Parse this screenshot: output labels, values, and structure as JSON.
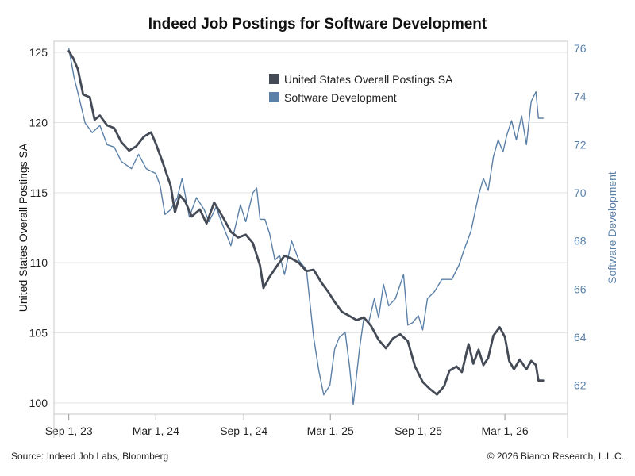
{
  "chart_data": {
    "type": "line",
    "title": "Indeed Job Postings for Software Development",
    "ylabel_left": "United States Overall Postings SA",
    "ylabel_right": "Software Development",
    "xlabel": "",
    "x_tick_labels": [
      "Sep 1, 23",
      "Mar 1, 24",
      "Sep 1, 24",
      "Mar 1, 25",
      "Sep 1, 25",
      "Mar 1, 26"
    ],
    "x_tick_dates": [
      "2023-09-01",
      "2024-03-01",
      "2024-09-01",
      "2025-03-01",
      "2025-09-01",
      "2026-03-01"
    ],
    "xlim": [
      "2023-08-01",
      "2026-07-10"
    ],
    "ylim_left": [
      99.2,
      125.8
    ],
    "ylim_right": [
      60.8,
      76.3
    ],
    "y_ticks_left": [
      100,
      105,
      110,
      115,
      120,
      125
    ],
    "y_ticks_right": [
      62,
      64,
      66,
      68,
      70,
      72,
      74,
      76
    ],
    "grid": true,
    "legend_position": "top-center",
    "series": [
      {
        "name": "United States Overall Postings SA",
        "axis": "left",
        "color": "#444a56",
        "points": [
          [
            "2023-09-01",
            125.1
          ],
          [
            "2023-09-10",
            124.6
          ],
          [
            "2023-09-20",
            123.8
          ],
          [
            "2023-10-01",
            122.0
          ],
          [
            "2023-10-15",
            121.8
          ],
          [
            "2023-10-25",
            120.2
          ],
          [
            "2023-11-05",
            120.5
          ],
          [
            "2023-11-20",
            119.8
          ],
          [
            "2023-12-05",
            119.6
          ],
          [
            "2023-12-20",
            118.6
          ],
          [
            "2024-01-05",
            118.0
          ],
          [
            "2024-01-20",
            118.3
          ],
          [
            "2024-02-05",
            119.0
          ],
          [
            "2024-02-20",
            119.3
          ],
          [
            "2024-03-01",
            118.5
          ],
          [
            "2024-03-15",
            117.2
          ],
          [
            "2024-04-01",
            115.5
          ],
          [
            "2024-04-10",
            113.6
          ],
          [
            "2024-04-20",
            114.8
          ],
          [
            "2024-05-01",
            114.4
          ],
          [
            "2024-05-15",
            113.3
          ],
          [
            "2024-06-01",
            113.8
          ],
          [
            "2024-06-15",
            112.8
          ],
          [
            "2024-07-01",
            114.3
          ],
          [
            "2024-07-20",
            113.2
          ],
          [
            "2024-08-05",
            112.2
          ],
          [
            "2024-08-20",
            111.8
          ],
          [
            "2024-09-05",
            112.0
          ],
          [
            "2024-09-20",
            111.4
          ],
          [
            "2024-10-05",
            109.8
          ],
          [
            "2024-10-12",
            108.2
          ],
          [
            "2024-10-25",
            109.0
          ],
          [
            "2024-11-10",
            109.8
          ],
          [
            "2024-11-25",
            110.5
          ],
          [
            "2024-12-10",
            110.3
          ],
          [
            "2024-12-25",
            110.0
          ],
          [
            "2025-01-10",
            109.4
          ],
          [
            "2025-01-25",
            109.5
          ],
          [
            "2025-02-10",
            108.6
          ],
          [
            "2025-02-25",
            107.9
          ],
          [
            "2025-03-10",
            107.2
          ],
          [
            "2025-03-25",
            106.5
          ],
          [
            "2025-04-10",
            106.2
          ],
          [
            "2025-04-25",
            105.9
          ],
          [
            "2025-05-10",
            106.1
          ],
          [
            "2025-05-25",
            105.5
          ],
          [
            "2025-06-10",
            104.5
          ],
          [
            "2025-06-25",
            103.9
          ],
          [
            "2025-07-10",
            104.6
          ],
          [
            "2025-07-25",
            104.9
          ],
          [
            "2025-08-10",
            104.4
          ],
          [
            "2025-08-25",
            102.6
          ],
          [
            "2025-09-10",
            101.5
          ],
          [
            "2025-09-25",
            101.0
          ],
          [
            "2025-10-10",
            100.6
          ],
          [
            "2025-10-25",
            101.2
          ],
          [
            "2025-11-05",
            102.3
          ],
          [
            "2025-11-20",
            102.6
          ],
          [
            "2025-12-01",
            102.2
          ],
          [
            "2025-12-15",
            104.2
          ],
          [
            "2025-12-25",
            102.8
          ],
          [
            "2026-01-05",
            103.8
          ],
          [
            "2026-01-15",
            102.7
          ],
          [
            "2026-01-25",
            103.2
          ],
          [
            "2026-02-05",
            104.8
          ],
          [
            "2026-02-18",
            105.4
          ],
          [
            "2026-03-01",
            104.7
          ],
          [
            "2026-03-10",
            103.0
          ],
          [
            "2026-03-20",
            102.4
          ],
          [
            "2026-04-01",
            103.1
          ],
          [
            "2026-04-15",
            102.4
          ],
          [
            "2026-04-25",
            103.0
          ],
          [
            "2026-05-05",
            102.7
          ],
          [
            "2026-05-10",
            101.6
          ],
          [
            "2026-05-20",
            101.6
          ]
        ]
      },
      {
        "name": "Software Development",
        "axis": "right",
        "color": "#5b80a8",
        "points": [
          [
            "2023-09-01",
            76.0
          ],
          [
            "2023-09-12",
            74.8
          ],
          [
            "2023-09-22",
            74.0
          ],
          [
            "2023-10-05",
            72.9
          ],
          [
            "2023-10-20",
            72.5
          ],
          [
            "2023-11-05",
            72.8
          ],
          [
            "2023-11-20",
            72.0
          ],
          [
            "2023-12-05",
            71.9
          ],
          [
            "2023-12-20",
            71.3
          ],
          [
            "2024-01-10",
            71.0
          ],
          [
            "2024-01-25",
            71.6
          ],
          [
            "2024-02-10",
            71.0
          ],
          [
            "2024-03-01",
            70.8
          ],
          [
            "2024-03-10",
            70.3
          ],
          [
            "2024-03-20",
            69.1
          ],
          [
            "2024-04-01",
            69.3
          ],
          [
            "2024-04-15",
            69.8
          ],
          [
            "2024-04-25",
            70.6
          ],
          [
            "2024-05-10",
            69.0
          ],
          [
            "2024-05-25",
            69.8
          ],
          [
            "2024-06-10",
            69.3
          ],
          [
            "2024-06-20",
            68.8
          ],
          [
            "2024-07-05",
            69.4
          ],
          [
            "2024-07-20",
            68.6
          ],
          [
            "2024-08-05",
            67.8
          ],
          [
            "2024-08-25",
            69.5
          ],
          [
            "2024-09-05",
            68.8
          ],
          [
            "2024-09-20",
            70.0
          ],
          [
            "2024-09-28",
            70.2
          ],
          [
            "2024-10-05",
            68.9
          ],
          [
            "2024-10-15",
            68.9
          ],
          [
            "2024-10-25",
            68.3
          ],
          [
            "2024-11-05",
            67.2
          ],
          [
            "2024-11-15",
            67.4
          ],
          [
            "2024-11-25",
            66.6
          ],
          [
            "2024-12-10",
            68.0
          ],
          [
            "2024-12-25",
            67.2
          ],
          [
            "2025-01-10",
            66.8
          ],
          [
            "2025-01-25",
            64.0
          ],
          [
            "2025-02-05",
            62.6
          ],
          [
            "2025-02-15",
            61.6
          ],
          [
            "2025-02-28",
            62.0
          ],
          [
            "2025-03-10",
            63.5
          ],
          [
            "2025-03-20",
            64.0
          ],
          [
            "2025-04-01",
            64.2
          ],
          [
            "2025-04-10",
            62.8
          ],
          [
            "2025-04-18",
            61.2
          ],
          [
            "2025-05-01",
            63.5
          ],
          [
            "2025-05-10",
            64.8
          ],
          [
            "2025-05-20",
            64.6
          ],
          [
            "2025-06-01",
            65.6
          ],
          [
            "2025-06-10",
            64.8
          ],
          [
            "2025-06-20",
            66.2
          ],
          [
            "2025-07-01",
            65.3
          ],
          [
            "2025-07-15",
            65.6
          ],
          [
            "2025-08-01",
            66.6
          ],
          [
            "2025-08-10",
            64.5
          ],
          [
            "2025-08-20",
            64.6
          ],
          [
            "2025-09-01",
            64.9
          ],
          [
            "2025-09-10",
            64.3
          ],
          [
            "2025-09-20",
            65.6
          ],
          [
            "2025-10-05",
            65.9
          ],
          [
            "2025-10-20",
            66.4
          ],
          [
            "2025-11-10",
            66.4
          ],
          [
            "2025-11-25",
            67.0
          ],
          [
            "2025-12-05",
            67.6
          ],
          [
            "2025-12-20",
            68.4
          ],
          [
            "2026-01-05",
            69.9
          ],
          [
            "2026-01-15",
            70.6
          ],
          [
            "2026-01-25",
            70.1
          ],
          [
            "2026-02-05",
            71.5
          ],
          [
            "2026-02-15",
            72.2
          ],
          [
            "2026-02-25",
            71.7
          ],
          [
            "2026-03-05",
            72.4
          ],
          [
            "2026-03-15",
            73.0
          ],
          [
            "2026-03-25",
            72.2
          ],
          [
            "2026-04-05",
            73.2
          ],
          [
            "2026-04-15",
            72.0
          ],
          [
            "2026-04-25",
            73.8
          ],
          [
            "2026-05-05",
            74.2
          ],
          [
            "2026-05-10",
            73.1
          ],
          [
            "2026-05-20",
            73.1
          ]
        ]
      }
    ]
  },
  "footer": {
    "source": "Source: Indeed Job Labs, Bloomberg",
    "copyright": "© 2026 Bianco Research, L.L.C."
  }
}
